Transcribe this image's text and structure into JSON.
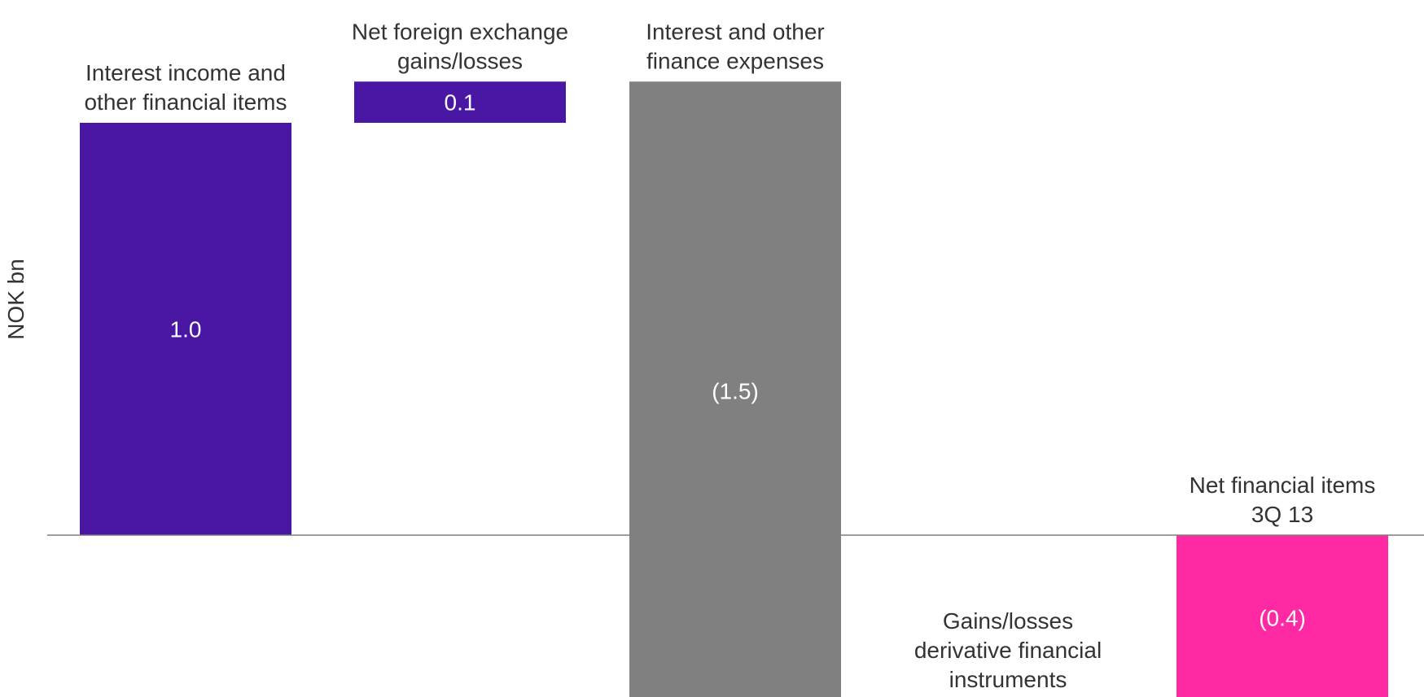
{
  "chart_data": {
    "type": "bar",
    "subtype": "waterfall",
    "ylabel": "NOK bn",
    "categories": [
      [
        "Interest income and",
        "other financial items"
      ],
      [
        "Net foreign exchange",
        "gains/losses"
      ],
      [
        "Interest and other",
        "finance expenses"
      ],
      [
        "Gains/losses",
        "derivative financial",
        "instruments"
      ],
      [
        "Net financial items",
        "3Q 13"
      ]
    ],
    "values": [
      1.0,
      0.1,
      -1.5,
      0.0,
      -0.4
    ],
    "value_labels": [
      "1.0",
      "0.1",
      "(1.5)",
      "(-)",
      "(0.4)"
    ],
    "is_total": [
      false,
      false,
      false,
      false,
      true
    ],
    "colors": {
      "positive": "#4a17a4",
      "negative": "#808080",
      "total": "#ff2aa3",
      "baseline": "#7f7f7f"
    },
    "grid": false,
    "legend": "none"
  }
}
